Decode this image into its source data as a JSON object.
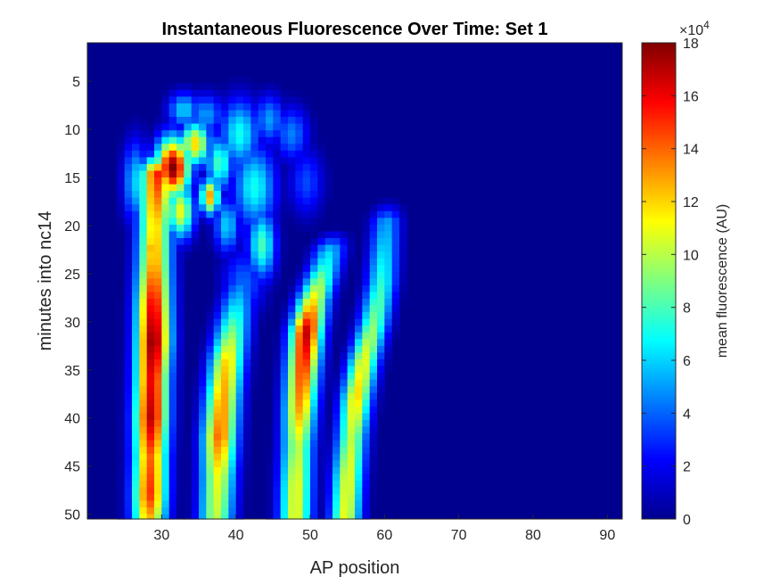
{
  "chart_data": {
    "type": "heatmap",
    "title": "Instantaneous Fluorescence Over Time: Set 1",
    "xlabel": "AP position",
    "ylabel": "minutes into nc14",
    "xlim": [
      20,
      92
    ],
    "ylim": [
      1,
      50.5
    ],
    "x_ticks": [
      "30",
      "40",
      "50",
      "60",
      "70",
      "80",
      "90"
    ],
    "y_ticks": [
      "5",
      "10",
      "15",
      "20",
      "25",
      "30",
      "35",
      "40",
      "45",
      "50"
    ],
    "colormap": "jet",
    "colorbar": {
      "label": "mean fluorescence (AU)",
      "range": [
        0,
        180000
      ],
      "ticks": [
        "0",
        "2",
        "4",
        "6",
        "8",
        "10",
        "12",
        "14",
        "16",
        "18"
      ],
      "exponent_label": "×10",
      "exponent_power": "4"
    },
    "bands": [
      {
        "t": [
          12,
          20,
          24,
          28,
          32,
          36,
          40,
          44,
          48,
          51
        ],
        "x": [
          29.6,
          29.1,
          29,
          28.9,
          28.9,
          28.7,
          28.6,
          28.5,
          28.4,
          28.3
        ],
        "peak": [
          17,
          12,
          13,
          16,
          18,
          16,
          17,
          14,
          15,
          12
        ],
        "width": 1.6
      },
      {
        "t": [
          24,
          27,
          30,
          34,
          38,
          42,
          46,
          51
        ],
        "x": [
          41.4,
          40.4,
          39.7,
          38.8,
          38.2,
          37.8,
          37.6,
          37.3
        ],
        "peak": [
          2.5,
          5,
          8,
          12,
          13,
          14,
          11,
          10
        ],
        "width": 1.6
      },
      {
        "t": [
          20,
          24,
          28,
          31,
          35,
          39,
          43,
          47,
          51
        ],
        "x": [
          53.5,
          52.1,
          50.3,
          49.5,
          49,
          48.6,
          48.3,
          48.1,
          48
        ],
        "peak": [
          4,
          7,
          12,
          17,
          15,
          13,
          10,
          11,
          11
        ],
        "width": 1.5
      },
      {
        "t": [
          17,
          22,
          26,
          30,
          34,
          38,
          42,
          46,
          51
        ],
        "x": [
          60.5,
          60,
          59.6,
          58.6,
          57.2,
          56.2,
          55.6,
          55.1,
          54.7
        ],
        "peak": [
          4,
          6,
          7.5,
          9,
          11,
          12,
          10,
          11,
          11
        ],
        "width": 1.4
      }
    ],
    "blobs": [
      {
        "x": 31.5,
        "y": 14,
        "peak": 18,
        "sx": 1.6,
        "sy": 2.2
      },
      {
        "x": 34.5,
        "y": 11.5,
        "peak": 12,
        "sx": 1.4,
        "sy": 1.6
      },
      {
        "x": 32.5,
        "y": 18.5,
        "peak": 11,
        "sx": 1.3,
        "sy": 2.0
      },
      {
        "x": 36.5,
        "y": 17,
        "peak": 13,
        "sx": 0.9,
        "sy": 1.3
      },
      {
        "x": 37.8,
        "y": 13.5,
        "peak": 8,
        "sx": 1.3,
        "sy": 2.0
      },
      {
        "x": 28.8,
        "y": 22.5,
        "peak": 13,
        "sx": 1.0,
        "sy": 1.5
      },
      {
        "x": 33.0,
        "y": 8.0,
        "peak": 6,
        "sx": 1.5,
        "sy": 1.3
      },
      {
        "x": 36.0,
        "y": 8.5,
        "peak": 5,
        "sx": 1.6,
        "sy": 1.5
      },
      {
        "x": 40.5,
        "y": 10.5,
        "peak": 7,
        "sx": 1.8,
        "sy": 2.5
      },
      {
        "x": 42.5,
        "y": 16.0,
        "peak": 7,
        "sx": 2.0,
        "sy": 3.0
      },
      {
        "x": 43.5,
        "y": 22.0,
        "peak": 8,
        "sx": 1.3,
        "sy": 2.5
      },
      {
        "x": 44.5,
        "y": 9.0,
        "peak": 5,
        "sx": 1.4,
        "sy": 1.8
      },
      {
        "x": 47.5,
        "y": 10.5,
        "peak": 4.5,
        "sx": 1.6,
        "sy": 2.0
      },
      {
        "x": 49.5,
        "y": 15.5,
        "peak": 3.5,
        "sx": 1.6,
        "sy": 2.5
      },
      {
        "x": 41.0,
        "y": 26.0,
        "peak": 4,
        "sx": 2.0,
        "sy": 2.5
      },
      {
        "x": 26.5,
        "y": 15.5,
        "peak": 6,
        "sx": 1.2,
        "sy": 3.0
      },
      {
        "x": 38.8,
        "y": 20.0,
        "peak": 6,
        "sx": 1.2,
        "sy": 2.0
      }
    ]
  }
}
